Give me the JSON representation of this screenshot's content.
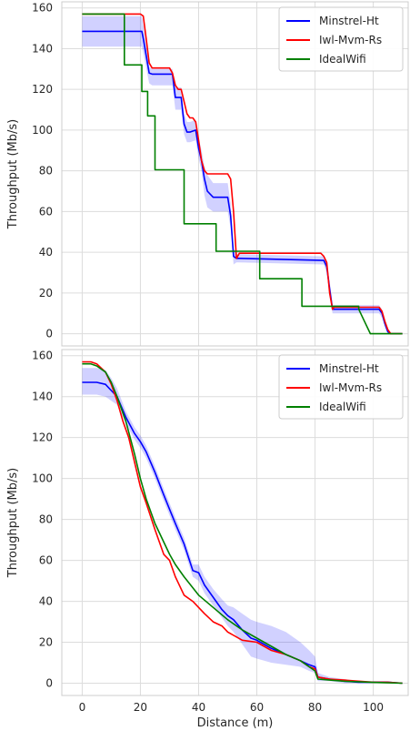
{
  "chart_data": [
    {
      "type": "line",
      "title": "",
      "xlabel": "",
      "ylabel": "Throughput (Mb/s)",
      "xlim": [
        -7,
        112
      ],
      "ylim": [
        -6,
        163
      ],
      "xticks": [
        0,
        20,
        40,
        60,
        80,
        100
      ],
      "xtick_labels_visible": false,
      "yticks": [
        0,
        20,
        40,
        60,
        80,
        100,
        120,
        140,
        160
      ],
      "grid": true,
      "legend_position": "top-right",
      "series": [
        {
          "name": "Minstrel-Ht",
          "color": "#0000ff",
          "x": [
            0,
            20.5,
            21,
            23,
            24,
            31,
            32,
            34,
            35,
            36,
            37,
            39,
            40,
            41,
            42,
            43,
            45,
            50,
            51,
            52,
            53,
            54,
            83,
            84,
            85,
            86,
            86.5,
            102,
            103,
            104,
            105,
            106,
            110
          ],
          "y": [
            148.5,
            148.5,
            145,
            128,
            127.5,
            127.5,
            116,
            116,
            103,
            99,
            99,
            100,
            91,
            85,
            76,
            70,
            67,
            67,
            58,
            38,
            37,
            37,
            36,
            33,
            22,
            12,
            12,
            12,
            10,
            5,
            1,
            0,
            0
          ],
          "band_lower": [
            141,
            141,
            138,
            123,
            122,
            122,
            110,
            110,
            98,
            94,
            94,
            95,
            86,
            80,
            68,
            62,
            60,
            60,
            52,
            34,
            35,
            35,
            34,
            30,
            18,
            10,
            10,
            10,
            8,
            3,
            0,
            0,
            0
          ],
          "band_upper": [
            156,
            156,
            152,
            131,
            130,
            130,
            121,
            121,
            108,
            104,
            104,
            105,
            96,
            90,
            82,
            78,
            74,
            74,
            64,
            42,
            39,
            39,
            38,
            36,
            26,
            14,
            14,
            14,
            12,
            7,
            2,
            0,
            0
          ]
        },
        {
          "name": "Iwl-Mvm-Rs",
          "color": "#ff0000",
          "x": [
            0,
            20,
            21,
            22,
            23,
            24,
            30,
            31,
            32,
            33,
            34,
            35,
            36,
            37,
            38,
            39,
            40,
            41,
            42,
            43,
            50,
            51,
            52,
            53,
            54,
            82,
            83,
            84,
            85,
            86,
            86.5,
            102,
            103,
            104,
            105,
            106,
            110
          ],
          "y": [
            157,
            157,
            156,
            145,
            133,
            130.5,
            130.5,
            128,
            122,
            120,
            120,
            114,
            108,
            106,
            106,
            104,
            95,
            85,
            80,
            78.5,
            78.5,
            76,
            60,
            37,
            39.5,
            39.5,
            38,
            35,
            20,
            12,
            13,
            13,
            11,
            6,
            2,
            0,
            0
          ]
        },
        {
          "name": "IdealWifi",
          "color": "#008000",
          "x": [
            0,
            14.5,
            14.5,
            20.5,
            20.5,
            22.5,
            22.5,
            25,
            25,
            35,
            35,
            46,
            46,
            61,
            61,
            75.5,
            75.5,
            95,
            95,
            97,
            99,
            110
          ],
          "y": [
            157,
            157,
            132,
            132,
            119,
            119,
            107,
            107,
            80.5,
            80.5,
            54,
            54,
            40.5,
            40.5,
            27,
            27,
            13.5,
            13.5,
            12,
            6,
            0,
            0
          ]
        }
      ]
    },
    {
      "type": "line",
      "title": "",
      "xlabel": "Distance (m)",
      "ylabel": "Throughput (Mb/s)",
      "xlim": [
        -7,
        112
      ],
      "ylim": [
        -6,
        163
      ],
      "xticks": [
        0,
        20,
        40,
        60,
        80,
        100
      ],
      "yticks": [
        0,
        20,
        40,
        60,
        80,
        100,
        120,
        140,
        160
      ],
      "grid": true,
      "legend_position": "top-right",
      "series": [
        {
          "name": "Minstrel-Ht",
          "color": "#0000ff",
          "x": [
            0,
            5,
            8,
            10,
            12,
            15,
            18,
            20,
            22,
            25,
            28,
            30,
            32,
            35,
            38,
            40,
            42,
            45,
            48,
            50,
            52,
            55,
            58,
            60,
            65,
            70,
            75,
            78,
            80,
            81,
            85,
            90,
            95,
            100,
            105,
            110
          ],
          "y": [
            147,
            147,
            146,
            143,
            140,
            130,
            122,
            118,
            113,
            103,
            92,
            85,
            78,
            68,
            55,
            54,
            48,
            42,
            36,
            33,
            31,
            26,
            22,
            21,
            17,
            14,
            11,
            9,
            8,
            3,
            2,
            1,
            0.5,
            0.5,
            0.5,
            0
          ],
          "band_lower": [
            141,
            141,
            140,
            138,
            136,
            127,
            119,
            115,
            110,
            100,
            89,
            82,
            75,
            65,
            52,
            50,
            44,
            38,
            32,
            28,
            25,
            19,
            13,
            12,
            10,
            9,
            8,
            6,
            5,
            1,
            1,
            0,
            0,
            0,
            0,
            0
          ],
          "band_upper": [
            154,
            154,
            153,
            149,
            144,
            133,
            125,
            121,
            116,
            106,
            95,
            88,
            81,
            71,
            58,
            58,
            52,
            46,
            41,
            38,
            37,
            34,
            31,
            30,
            28,
            25,
            20,
            16,
            13,
            5,
            3,
            2,
            1,
            1,
            1,
            0
          ]
        },
        {
          "name": "Iwl-Mvm-Rs",
          "color": "#ff0000",
          "x": [
            0,
            3,
            5,
            8,
            10,
            12,
            14,
            16,
            18,
            20,
            22,
            25,
            28,
            30,
            32,
            35,
            38,
            40,
            42,
            45,
            48,
            50,
            55,
            60,
            65,
            70,
            75,
            78,
            80,
            81,
            85,
            90,
            95,
            100,
            105,
            110
          ],
          "y": [
            157,
            157,
            156,
            152,
            146,
            138,
            128,
            120,
            108,
            96,
            88,
            75,
            63,
            60,
            52,
            43,
            40,
            37,
            34,
            30,
            28,
            25,
            21,
            20,
            16,
            14,
            11,
            8,
            7,
            3,
            2,
            1.5,
            1,
            0.5,
            0.5,
            0
          ]
        },
        {
          "name": "IdealWifi",
          "color": "#008000",
          "x": [
            0,
            3,
            5,
            8,
            10,
            12,
            15,
            18,
            20,
            22,
            25,
            28,
            30,
            32,
            35,
            40,
            45,
            50,
            55,
            60,
            65,
            70,
            75,
            78,
            80,
            81,
            85,
            90,
            95,
            100,
            105,
            110
          ],
          "y": [
            156,
            156,
            155,
            152,
            147,
            140,
            128,
            112,
            100,
            90,
            78,
            69,
            63,
            58,
            52,
            43,
            37,
            31,
            26,
            22,
            18,
            14,
            11,
            8,
            6,
            2,
            1.5,
            1,
            0.7,
            0.4,
            0.2,
            0
          ]
        }
      ]
    }
  ]
}
